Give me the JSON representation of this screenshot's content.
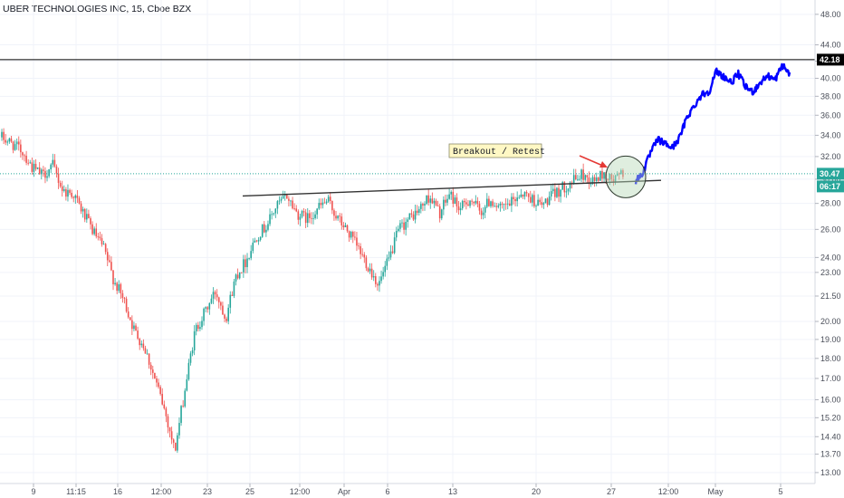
{
  "chart_data": {
    "type": "candlestick",
    "title": "UBER TECHNOLOGIES INC, 15, Cboe BZX",
    "y_ticks": [
      13.0,
      13.7,
      14.4,
      15.2,
      16.0,
      17.0,
      18.0,
      19.0,
      20.0,
      21.5,
      23.0,
      24.0,
      26.0,
      28.0,
      30.0,
      32.0,
      34.0,
      36.0,
      38.0,
      40.0,
      42.0,
      44.0,
      48.0
    ],
    "y_tick_labels": [
      "13.00",
      "13.70",
      "14.40",
      "15.20",
      "16.00",
      "17.00",
      "18.00",
      "19.00",
      "20.00",
      "21.50",
      "23.00",
      "24.00",
      "26.00",
      "28.00",
      "30.00",
      "32.00",
      "34.00",
      "36.00",
      "38.00",
      "40.00",
      "42.00",
      "44.00",
      "48.00"
    ],
    "y_scale": "log",
    "ylim": [
      12.6,
      50
    ],
    "x_tick_labels": [
      "9",
      "11:15",
      "16",
      "12:00",
      "23",
      "25",
      "12:00",
      "Apr",
      "6",
      "13",
      "20",
      "27",
      "12:00",
      "May",
      "5"
    ],
    "price_labels": {
      "level": "42.18",
      "current": "30.47",
      "countdown": "06:17"
    },
    "annotations": {
      "text": "Breakout / Retest"
    },
    "colors": {
      "up": "#26a69a",
      "down": "#ef5350",
      "projection": "#0000ff",
      "current_line": "#26a69a",
      "level_line": "#000000",
      "trendline": "#333333",
      "arrow": "#e53935",
      "circle_fill": "#b7d9b9",
      "annotation_fill": "#fff8c4",
      "axis_text": "#4a4e59",
      "grid": "#f0f3fa"
    },
    "ohlc_anchors_close": [
      33.8,
      33.2,
      32.5,
      31.0,
      30.3,
      31.2,
      29.0,
      28.8,
      27.2,
      25.8,
      24.6,
      22.5,
      21.2,
      19.5,
      18.6,
      17.0,
      15.5,
      13.8,
      16.5,
      19.5,
      20.6,
      21.8,
      20.2,
      22.8,
      23.8,
      25.5,
      26.3,
      27.8,
      28.6,
      27.2,
      26.8,
      27.6,
      28.2,
      26.8,
      25.8,
      24.6,
      23.4,
      22.2,
      23.8,
      26.0,
      26.8,
      27.5,
      28.6,
      27.2,
      28.8,
      27.5,
      28.4,
      27.3,
      28.3,
      27.5,
      28.0,
      28.9,
      28.4,
      27.8,
      28.6,
      29.2,
      29.8,
      30.4,
      29.8,
      30.4,
      29.9,
      30.5
    ],
    "projection_anchors_close": [
      29.8,
      30.6,
      32.3,
      33.6,
      33.2,
      32.8,
      33.8,
      35.8,
      37.0,
      38.2,
      38.5,
      40.8,
      40.2,
      39.5,
      40.5,
      39.0,
      38.5,
      39.5,
      40.3,
      39.8,
      41.5,
      40.5
    ]
  }
}
